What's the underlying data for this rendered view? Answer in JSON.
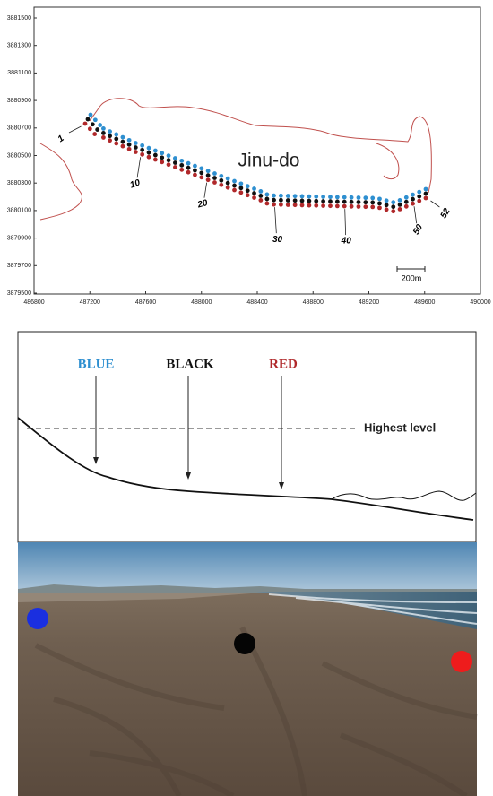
{
  "map": {
    "yticks": [
      3881500,
      3881300,
      3881100,
      3880900,
      3880700,
      3880500,
      3880300,
      3880100,
      3879900,
      3879700,
      3879500
    ],
    "xticks": [
      486800,
      487200,
      487600,
      488000,
      488400,
      488800,
      489200,
      489600,
      490000
    ],
    "island_label": "Jinu-do",
    "station_labels": [
      1,
      10,
      20,
      30,
      40,
      50,
      52
    ],
    "scale_label": "200m"
  },
  "profile": {
    "zones": [
      {
        "label": "BLUE",
        "color": "#2e8fd0"
      },
      {
        "label": "BLACK",
        "color": "#111111"
      },
      {
        "label": "RED",
        "color": "#b0282a"
      }
    ],
    "level_label": "Highest level"
  }
}
